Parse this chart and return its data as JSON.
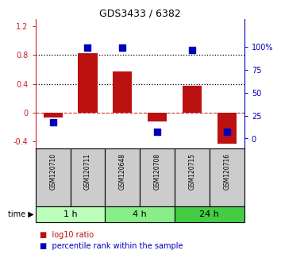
{
  "title": "GDS3433 / 6382",
  "samples": [
    "GSM120710",
    "GSM120711",
    "GSM120648",
    "GSM120708",
    "GSM120715",
    "GSM120716"
  ],
  "time_groups": [
    {
      "label": "1 h",
      "color": "#bbffbb",
      "n": 2
    },
    {
      "label": "4 h",
      "color": "#88ee88",
      "n": 2
    },
    {
      "label": "24 h",
      "color": "#44cc44",
      "n": 2
    }
  ],
  "log10_ratio": [
    -0.07,
    0.83,
    0.57,
    -0.13,
    0.37,
    -0.43
  ],
  "percentile_rank_pct": [
    18,
    99,
    99,
    7,
    96,
    7
  ],
  "bar_color": "#bb1111",
  "dot_color": "#0000bb",
  "ylim_left": [
    -0.5,
    1.3
  ],
  "ylim_right": [
    -10.83,
    130
  ],
  "yticks_left": [
    -0.4,
    0.0,
    0.4,
    0.8,
    1.2
  ],
  "yticks_right": [
    0,
    25,
    50,
    75,
    100
  ],
  "ytick_labels_left": [
    "-0.4",
    "0",
    "0.4",
    "0.8",
    "1.2"
  ],
  "ytick_labels_right": [
    "0",
    "25",
    "50",
    "75",
    "100%"
  ],
  "hlines_dotted": [
    0.4,
    0.8
  ],
  "hline_zero_color": "#cc3333",
  "left_tick_color": "#cc2222",
  "right_tick_color": "#0000bb",
  "bar_width": 0.55,
  "dot_size": 28,
  "sample_box_color": "#cccccc",
  "sample_box_edge": "#000000",
  "title_fontsize": 9,
  "tick_fontsize": 7,
  "sample_fontsize": 5.5,
  "time_fontsize": 8
}
